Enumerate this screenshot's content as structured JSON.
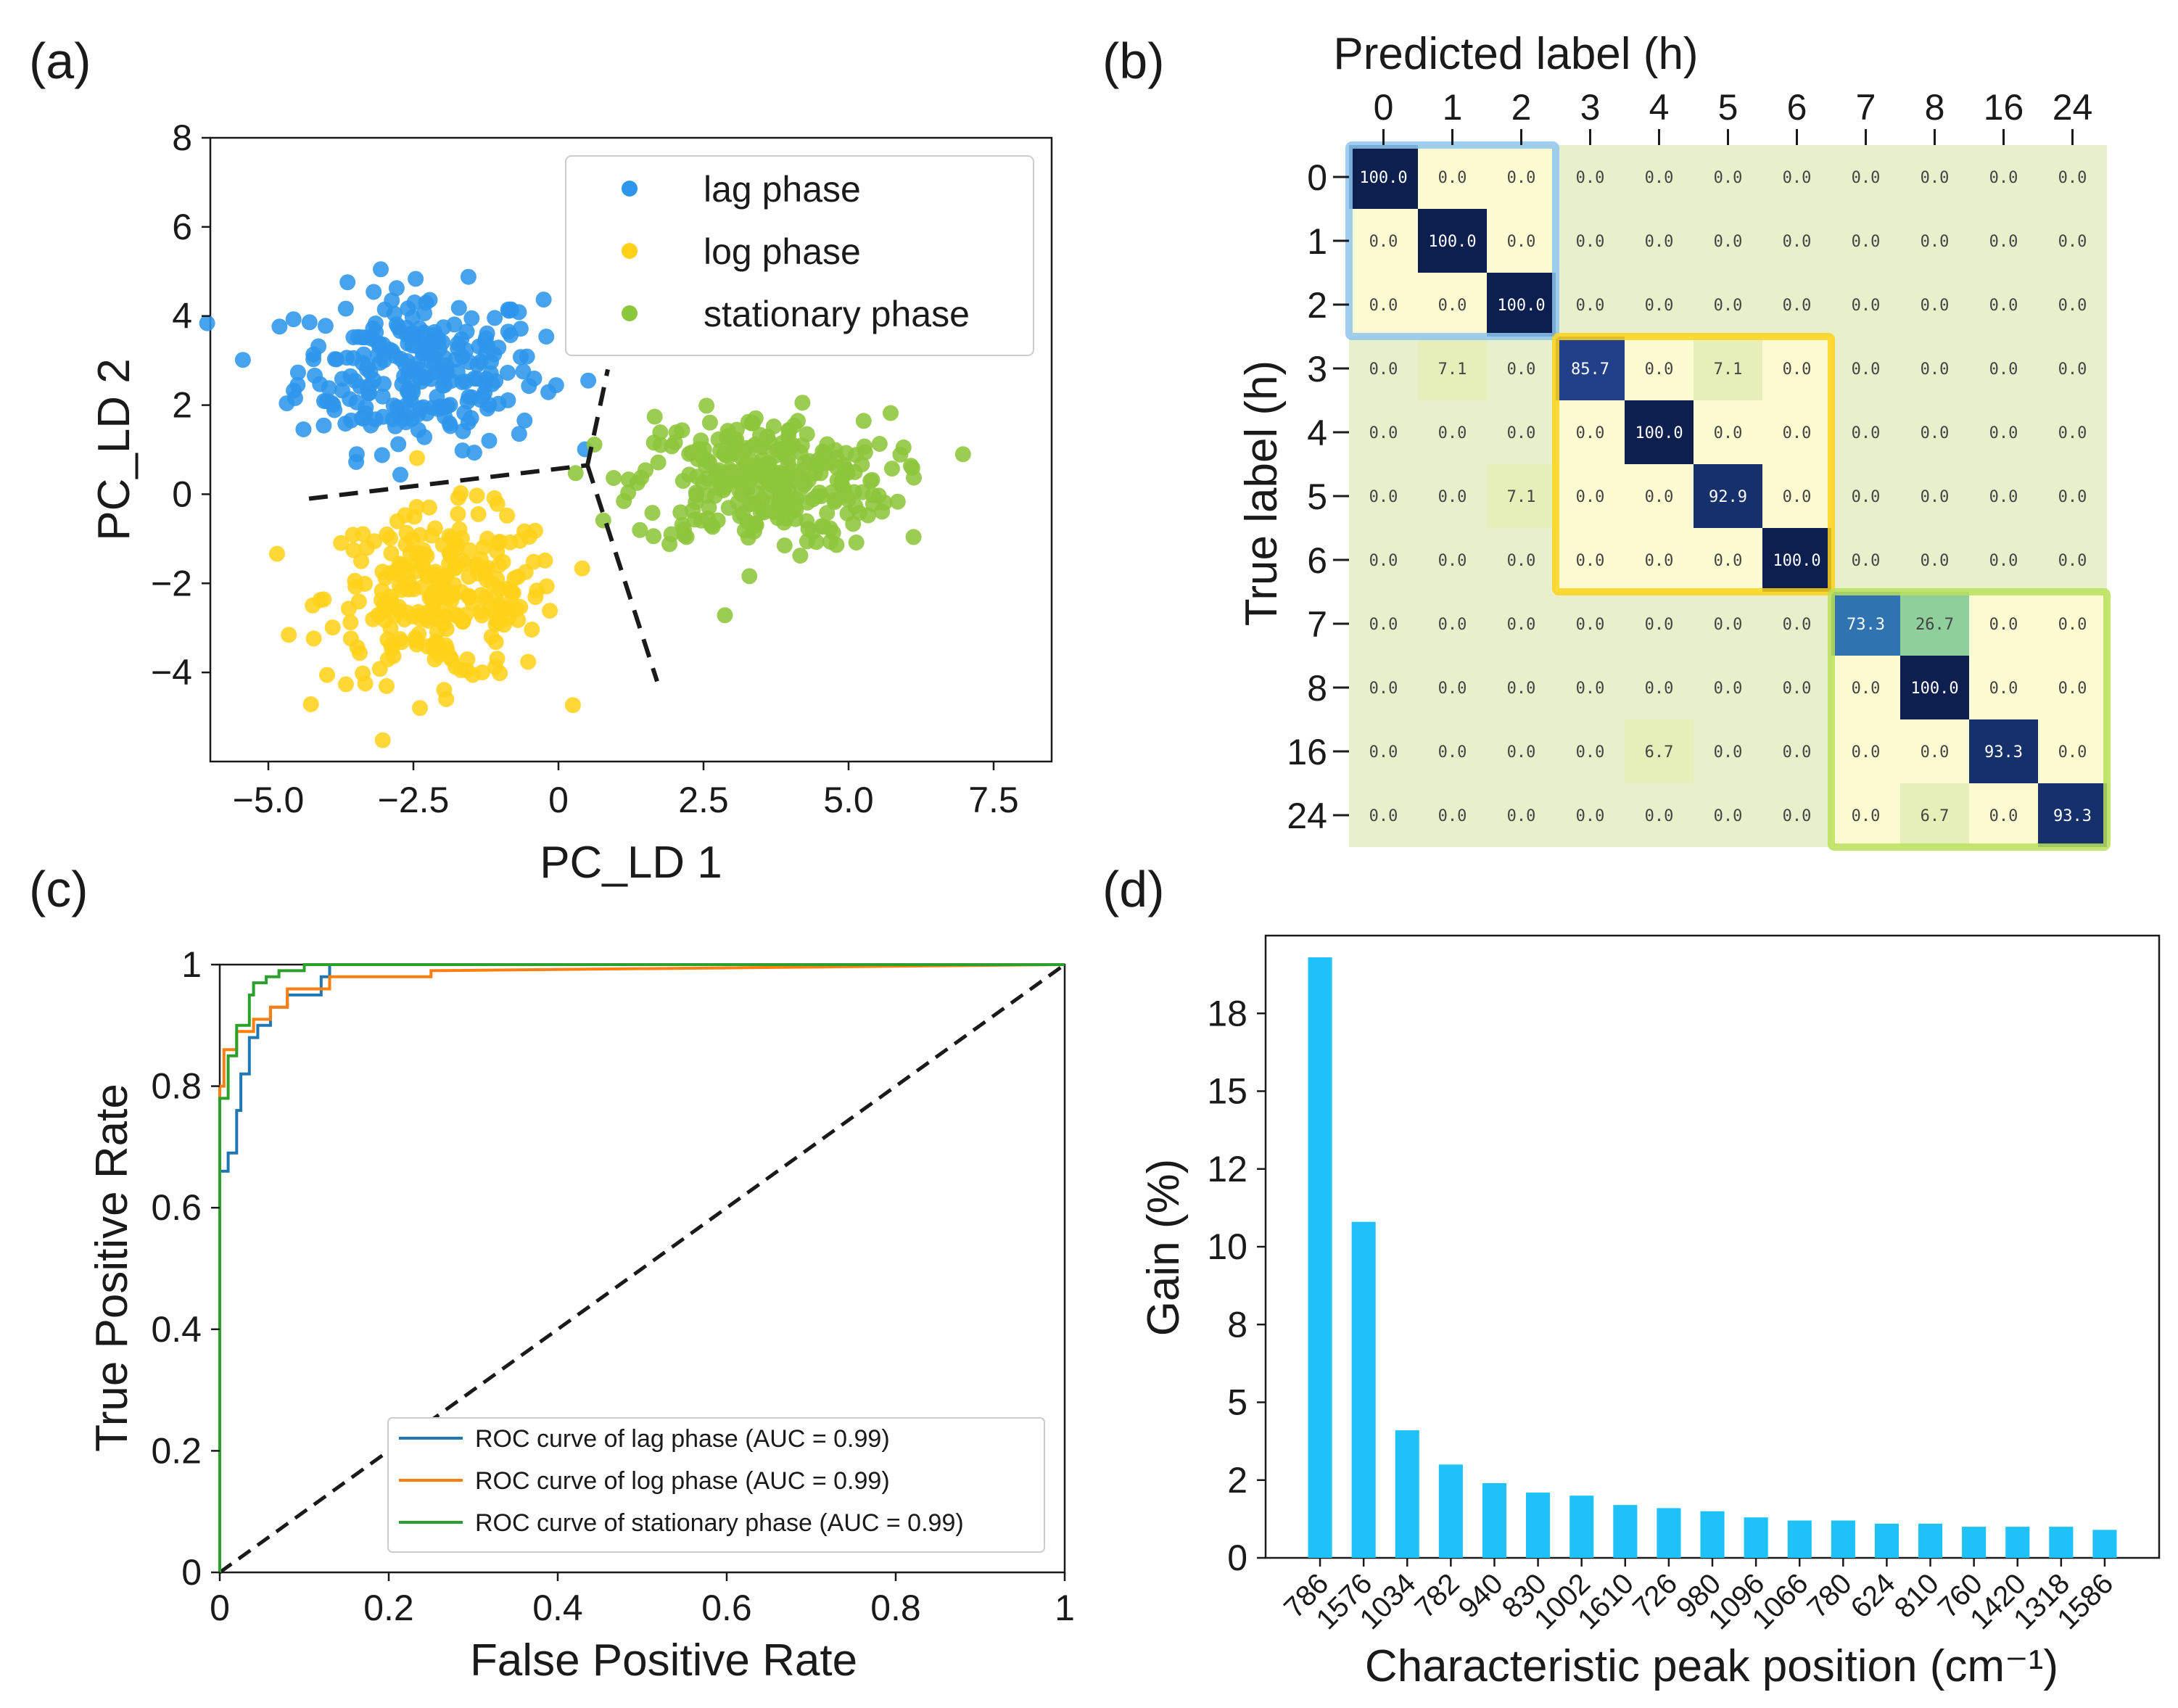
{
  "chart_data": [
    {
      "panel": "(a)",
      "type": "scatter",
      "xlabel": "PC_LD 1",
      "ylabel": "PC_LD 2",
      "xlim": [
        -6.0,
        8.5
      ],
      "ylim": [
        -6.0,
        8.0
      ],
      "xticks": [
        "−5.0",
        "−2.5",
        "0",
        "2.5",
        "5.0",
        "7.5"
      ],
      "xtick_values": [
        -5,
        -2.5,
        0,
        2.5,
        5,
        7.5
      ],
      "yticks": [
        "8",
        "6",
        "4",
        "2",
        "0",
        "−2",
        "−4"
      ],
      "ytick_values": [
        8,
        6,
        4,
        2,
        0,
        -2,
        -4
      ],
      "series": [
        {
          "name": "lag phase",
          "color": "#2e96ec",
          "center": [
            -2.4,
            2.8
          ],
          "spread": [
            1.05,
            0.9
          ],
          "count": 260
        },
        {
          "name": "log phase",
          "color": "#ffd21a",
          "center": [
            -2.0,
            -2.3
          ],
          "spread": [
            1.0,
            0.95
          ],
          "count": 260
        },
        {
          "name": "stationary phase",
          "color": "#8cc63a",
          "center": [
            3.5,
            0.3
          ],
          "spread": [
            1.1,
            0.75
          ],
          "count": 300
        }
      ],
      "boundaries": [
        {
          "from": [
            -4.3,
            -0.1
          ],
          "to": [
            0.5,
            0.65
          ]
        },
        {
          "from": [
            0.5,
            0.65
          ],
          "to": [
            0.85,
            2.8
          ]
        },
        {
          "from": [
            0.5,
            0.65
          ],
          "to": [
            1.7,
            -4.2
          ]
        }
      ],
      "legend": [
        "lag phase",
        "log phase",
        "stationary phase"
      ]
    },
    {
      "panel": "(b)",
      "type": "heatmap",
      "title": "Predicted label (h)",
      "ylabel": "True label (h)",
      "labels": [
        "0",
        "1",
        "2",
        "3",
        "4",
        "5",
        "6",
        "7",
        "8",
        "16",
        "24"
      ],
      "matrix": [
        [
          "100.0",
          "0.0",
          "0.0",
          "0.0",
          "0.0",
          "0.0",
          "0.0",
          "0.0",
          "0.0",
          "0.0",
          "0.0"
        ],
        [
          "0.0",
          "100.0",
          "0.0",
          "0.0",
          "0.0",
          "0.0",
          "0.0",
          "0.0",
          "0.0",
          "0.0",
          "0.0"
        ],
        [
          "0.0",
          "0.0",
          "100.0",
          "0.0",
          "0.0",
          "0.0",
          "0.0",
          "0.0",
          "0.0",
          "0.0",
          "0.0"
        ],
        [
          "0.0",
          "7.1",
          "0.0",
          "85.7",
          "0.0",
          "7.1",
          "0.0",
          "0.0",
          "0.0",
          "0.0",
          "0.0"
        ],
        [
          "0.0",
          "0.0",
          "0.0",
          "0.0",
          "100.0",
          "0.0",
          "0.0",
          "0.0",
          "0.0",
          "0.0",
          "0.0"
        ],
        [
          "0.0",
          "0.0",
          "7.1",
          "0.0",
          "0.0",
          "92.9",
          "0.0",
          "0.0",
          "0.0",
          "0.0",
          "0.0"
        ],
        [
          "0.0",
          "0.0",
          "0.0",
          "0.0",
          "0.0",
          "0.0",
          "100.0",
          "0.0",
          "0.0",
          "0.0",
          "0.0"
        ],
        [
          "0.0",
          "0.0",
          "0.0",
          "0.0",
          "0.0",
          "0.0",
          "0.0",
          "73.3",
          "26.7",
          "0.0",
          "0.0"
        ],
        [
          "0.0",
          "0.0",
          "0.0",
          "0.0",
          "0.0",
          "0.0",
          "0.0",
          "0.0",
          "100.0",
          "0.0",
          "0.0"
        ],
        [
          "0.0",
          "0.0",
          "0.0",
          "0.0",
          "6.7",
          "0.0",
          "0.0",
          "0.0",
          "0.0",
          "93.3",
          "0.0"
        ],
        [
          "0.0",
          "0.0",
          "0.0",
          "0.0",
          "0.0",
          "0.0",
          "0.0",
          "0.0",
          "6.7",
          "0.0",
          "93.3"
        ]
      ],
      "groups": [
        {
          "name": "lag phase",
          "start": 0,
          "end": 2,
          "color": "#8ec5f0"
        },
        {
          "name": "log phase",
          "start": 3,
          "end": 6,
          "color": "#ffd21a"
        },
        {
          "name": "stationary phase",
          "start": 7,
          "end": 10,
          "color": "#b8e05a"
        }
      ]
    },
    {
      "panel": "(c)",
      "type": "line",
      "xlabel": "False Positive Rate",
      "ylabel": "True Positive Rate",
      "xlim": [
        0,
        1
      ],
      "ylim": [
        0,
        1
      ],
      "xticks": [
        "0",
        "0.2",
        "0.4",
        "0.6",
        "0.8",
        "1"
      ],
      "xtick_values": [
        0,
        0.2,
        0.4,
        0.6,
        0.8,
        1
      ],
      "yticks": [
        "1",
        "0.8",
        "0.6",
        "0.4",
        "0.2",
        "0"
      ],
      "ytick_values": [
        1,
        0.8,
        0.6,
        0.4,
        0.2,
        0
      ],
      "series": [
        {
          "name": "ROC curve of lag phase (AUC = 0.99)",
          "color": "#1f77b4",
          "points": [
            [
              0,
              0
            ],
            [
              0,
              0.66
            ],
            [
              0.01,
              0.66
            ],
            [
              0.01,
              0.69
            ],
            [
              0.02,
              0.69
            ],
            [
              0.02,
              0.76
            ],
            [
              0.025,
              0.76
            ],
            [
              0.025,
              0.82
            ],
            [
              0.035,
              0.82
            ],
            [
              0.035,
              0.88
            ],
            [
              0.045,
              0.88
            ],
            [
              0.045,
              0.9
            ],
            [
              0.06,
              0.9
            ],
            [
              0.06,
              0.93
            ],
            [
              0.08,
              0.93
            ],
            [
              0.08,
              0.95
            ],
            [
              0.12,
              0.95
            ],
            [
              0.12,
              0.98
            ],
            [
              0.13,
              0.98
            ],
            [
              0.13,
              1.0
            ],
            [
              1,
              1
            ]
          ]
        },
        {
          "name": "ROC curve of log phase (AUC = 0.99)",
          "color": "#ff7f0e",
          "points": [
            [
              0,
              0
            ],
            [
              0,
              0.8
            ],
            [
              0.005,
              0.8
            ],
            [
              0.005,
              0.86
            ],
            [
              0.02,
              0.86
            ],
            [
              0.02,
              0.89
            ],
            [
              0.04,
              0.89
            ],
            [
              0.04,
              0.91
            ],
            [
              0.06,
              0.91
            ],
            [
              0.06,
              0.93
            ],
            [
              0.08,
              0.93
            ],
            [
              0.08,
              0.96
            ],
            [
              0.13,
              0.96
            ],
            [
              0.13,
              0.98
            ],
            [
              0.25,
              0.98
            ],
            [
              0.25,
              0.99
            ],
            [
              1,
              1
            ]
          ]
        },
        {
          "name": "ROC curve of stationary phase (AUC = 0.99)",
          "color": "#2ca02c",
          "points": [
            [
              0,
              0
            ],
            [
              0,
              0.78
            ],
            [
              0.01,
              0.78
            ],
            [
              0.01,
              0.85
            ],
            [
              0.02,
              0.85
            ],
            [
              0.02,
              0.9
            ],
            [
              0.035,
              0.9
            ],
            [
              0.035,
              0.95
            ],
            [
              0.04,
              0.95
            ],
            [
              0.04,
              0.97
            ],
            [
              0.055,
              0.97
            ],
            [
              0.055,
              0.98
            ],
            [
              0.07,
              0.98
            ],
            [
              0.07,
              0.99
            ],
            [
              0.1,
              0.99
            ],
            [
              0.1,
              1.0
            ],
            [
              1,
              1
            ]
          ]
        }
      ],
      "reference": {
        "from": [
          0,
          0
        ],
        "to": [
          1,
          1
        ],
        "style": "dashed"
      },
      "legend": [
        "ROC curve of lag phase (AUC = 0.99)",
        "ROC curve of log phase (AUC = 0.99)",
        "ROC curve of stationary phase (AUC = 0.99)"
      ]
    },
    {
      "panel": "(d)",
      "type": "bar",
      "xlabel": "Characteristic peak position (cm⁻¹)",
      "ylabel": "Gain (%)",
      "ylim": [
        0,
        20
      ],
      "yticks": [
        "18",
        "15",
        "12",
        "10",
        "8",
        "5",
        "2",
        "0"
      ],
      "ytick_values": [
        17.5,
        15,
        12.5,
        10,
        7.5,
        5,
        2.5,
        0
      ],
      "categories": [
        "786",
        "1576",
        "1034",
        "782",
        "940",
        "830",
        "1002",
        "1610",
        "726",
        "980",
        "1096",
        "1066",
        "780",
        "624",
        "810",
        "760",
        "1420",
        "1318",
        "1586"
      ],
      "values": [
        19.3,
        10.8,
        4.1,
        3.0,
        2.4,
        2.1,
        2.0,
        1.7,
        1.6,
        1.5,
        1.3,
        1.2,
        1.2,
        1.1,
        1.1,
        1.0,
        1.0,
        1.0,
        0.9
      ],
      "color": "#1ec2f8"
    }
  ]
}
